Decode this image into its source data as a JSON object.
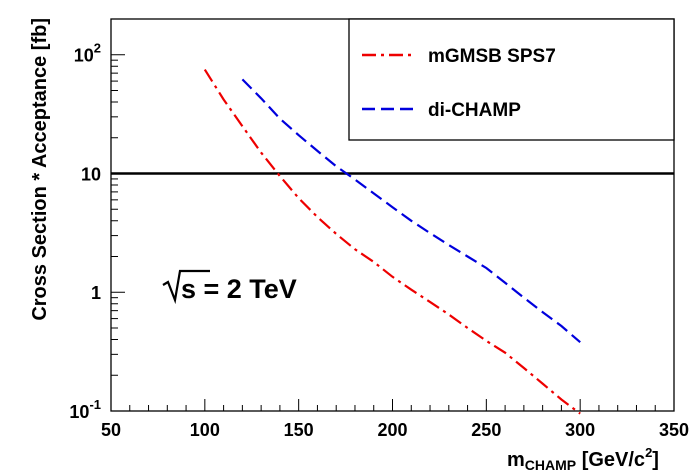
{
  "chart_data": {
    "type": "line",
    "xlabel": "m",
    "xlabel_sub": "CHAMP",
    "xlabel_unit": " [GeV/c",
    "xlabel_sup": "2",
    "xlabel_close": "]",
    "ylabel": "Cross Section * Acceptance [fb]",
    "xlim": [
      50,
      350
    ],
    "ylim": [
      0.1,
      200
    ],
    "yscale": "log",
    "x_ticks": [
      {
        "value": 50,
        "label": "50"
      },
      {
        "value": 100,
        "label": "100"
      },
      {
        "value": 150,
        "label": "150"
      },
      {
        "value": 200,
        "label": "200"
      },
      {
        "value": 250,
        "label": "250"
      },
      {
        "value": 300,
        "label": "300"
      },
      {
        "value": 350,
        "label": "350"
      }
    ],
    "y_ticks": [
      {
        "value": 0.1,
        "base": "10",
        "exp": "-1"
      },
      {
        "value": 1,
        "base": "1",
        "exp": ""
      },
      {
        "value": 10,
        "base": "10",
        "exp": ""
      },
      {
        "value": 100,
        "base": "10",
        "exp": "2"
      }
    ],
    "series": [
      {
        "name": "mGMSB SPS7",
        "color": "#ee0000",
        "style": "dash-dot",
        "x": [
          100,
          110,
          120,
          130,
          140,
          150,
          160,
          170,
          180,
          190,
          200,
          210,
          220,
          230,
          240,
          250,
          260,
          270,
          280,
          290,
          300
        ],
        "y": [
          75,
          42,
          25,
          15,
          9.5,
          6.2,
          4.3,
          3.1,
          2.3,
          1.8,
          1.35,
          1.05,
          0.83,
          0.65,
          0.5,
          0.39,
          0.31,
          0.23,
          0.17,
          0.125,
          0.095
        ]
      },
      {
        "name": "di-CHAMP",
        "color": "#0000dd",
        "style": "dashed",
        "x": [
          120,
          130,
          140,
          150,
          160,
          170,
          180,
          190,
          200,
          210,
          220,
          230,
          240,
          250,
          260,
          270,
          280,
          290,
          300
        ],
        "y": [
          62,
          43,
          29,
          21,
          15.5,
          11.5,
          8.9,
          6.8,
          5.2,
          4.0,
          3.15,
          2.5,
          2.0,
          1.6,
          1.2,
          0.9,
          0.68,
          0.52,
          0.38
        ]
      }
    ],
    "reference_line": {
      "y": 10,
      "color": "#000000"
    },
    "legend": {
      "position": "top-right"
    },
    "annotation": {
      "sqrt": "√",
      "text": "s = 2 TeV"
    },
    "grid": false
  }
}
